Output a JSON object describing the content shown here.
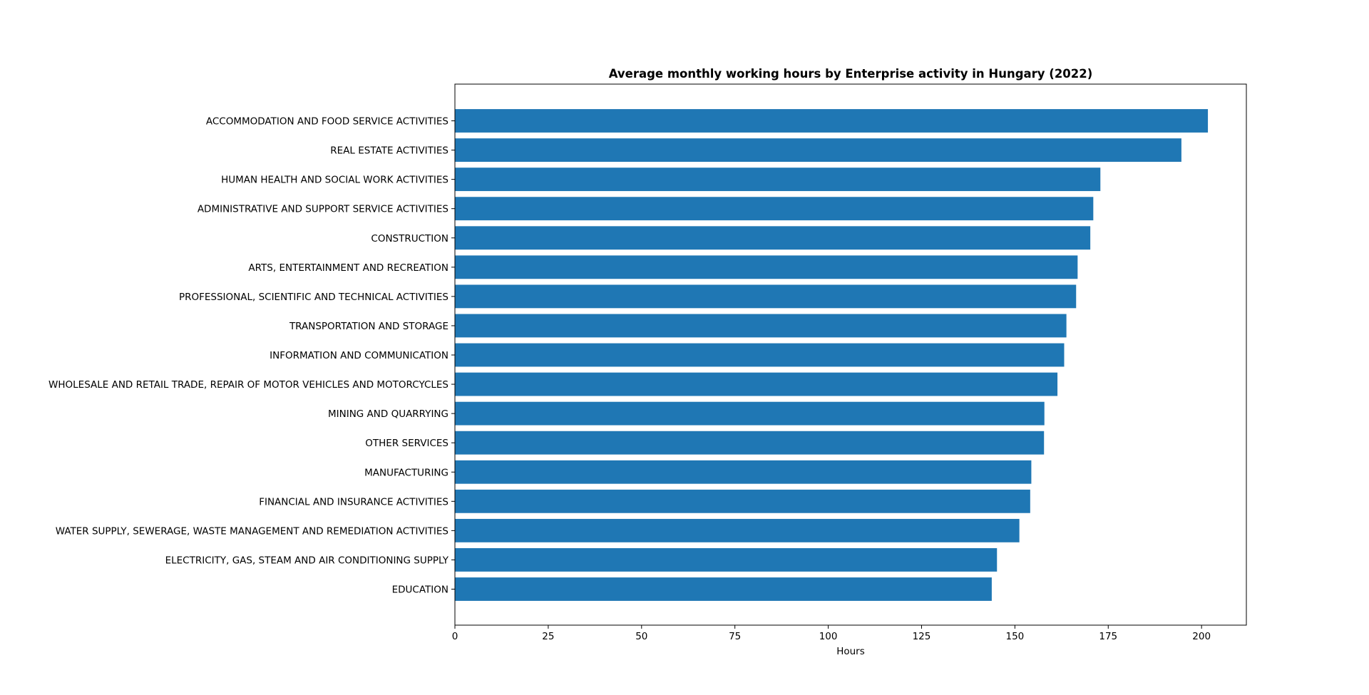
{
  "chart_data": {
    "type": "bar",
    "orientation": "horizontal",
    "title": "Average monthly working hours by Enterprise activity in Hungary (2022)",
    "xlabel": "Hours",
    "ylabel": "",
    "xlim": [
      0,
      212
    ],
    "xticks": [
      0,
      25,
      50,
      75,
      100,
      125,
      150,
      175,
      200
    ],
    "grid": false,
    "bar_color": "#1f77b4",
    "categories": [
      "ACCOMMODATION AND FOOD SERVICE ACTIVITIES",
      "REAL ESTATE ACTIVITIES",
      "HUMAN HEALTH AND SOCIAL WORK ACTIVITIES",
      "ADMINISTRATIVE AND SUPPORT SERVICE ACTIVITIES",
      "CONSTRUCTION",
      "ARTS, ENTERTAINMENT AND RECREATION",
      "PROFESSIONAL, SCIENTIFIC AND TECHNICAL ACTIVITIES",
      "TRANSPORTATION AND STORAGE",
      "INFORMATION AND COMMUNICATION",
      "WHOLESALE AND RETAIL TRADE, REPAIR OF MOTOR VEHICLES AND MOTORCYCLES",
      "MINING AND QUARRYING",
      "OTHER SERVICES",
      "MANUFACTURING",
      "FINANCIAL AND INSURANCE ACTIVITIES",
      "WATER SUPPLY, SEWERAGE, WASTE MANAGEMENT AND REMEDIATION ACTIVITIES",
      "ELECTRICITY, GAS, STEAM AND AIR CONDITIONING SUPPLY",
      "EDUCATION"
    ],
    "values": [
      201.7,
      194.6,
      172.9,
      171.0,
      170.2,
      166.8,
      166.4,
      163.8,
      163.2,
      161.4,
      157.9,
      157.8,
      154.4,
      154.1,
      151.2,
      145.2,
      143.8
    ]
  }
}
